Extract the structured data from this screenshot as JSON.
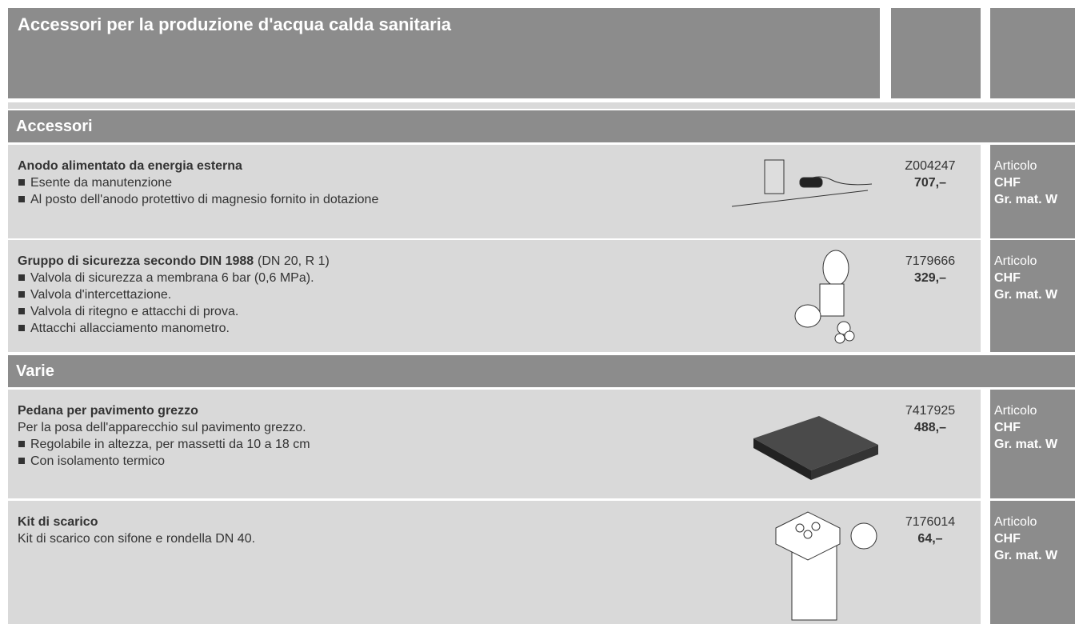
{
  "header": {
    "title": "Accessori per la produzione d'acqua calda sanitaria"
  },
  "sections": [
    {
      "title": "Accessori",
      "items": [
        {
          "name": "Anodo alimentato da energia esterna",
          "lines": [
            {
              "bullet": true,
              "text": "Esente da manutenzione"
            },
            {
              "bullet": true,
              "text": "Al posto dell'anodo protettivo di magnesio fornito in dotazione"
            }
          ],
          "code": "Z004247",
          "price": "707,–",
          "labels": [
            "Articolo",
            "CHF",
            "Gr. mat. W"
          ]
        },
        {
          "name": "Gruppo di sicurezza secondo DIN 1988",
          "name_suffix": "(DN 20, R 1)",
          "lines": [
            {
              "bullet": true,
              "text": "Valvola di sicurezza a membrana 6 bar (0,6 MPa)."
            },
            {
              "bullet": true,
              "text": "Valvola d'intercettazione."
            },
            {
              "bullet": true,
              "text": "Valvola di ritegno e attacchi di prova."
            },
            {
              "bullet": true,
              "text": "Attacchi allacciamento manometro."
            }
          ],
          "code": "7179666",
          "price": "329,–",
          "labels": [
            "Articolo",
            "CHF",
            "Gr. mat. W"
          ]
        }
      ]
    },
    {
      "title": "Varie",
      "items": [
        {
          "name": "Pedana per pavimento grezzo",
          "lines": [
            {
              "bullet": false,
              "text": "Per la posa dell'apparecchio sul pavimento grezzo."
            },
            {
              "bullet": true,
              "text": "Regolabile in altezza, per massetti da 10 a 18 cm"
            },
            {
              "bullet": true,
              "text": "Con isolamento termico"
            }
          ],
          "code": "7417925",
          "price": "488,–",
          "labels": [
            "Articolo",
            "CHF",
            "Gr. mat. W"
          ]
        },
        {
          "name": "Kit di scarico",
          "lines": [
            {
              "bullet": false,
              "text": "Kit di scarico con sifone e rondella DN 40."
            }
          ],
          "code": "7176014",
          "price": "64,–",
          "labels": [
            "Articolo",
            "CHF",
            "Gr. mat. W"
          ]
        }
      ]
    }
  ]
}
